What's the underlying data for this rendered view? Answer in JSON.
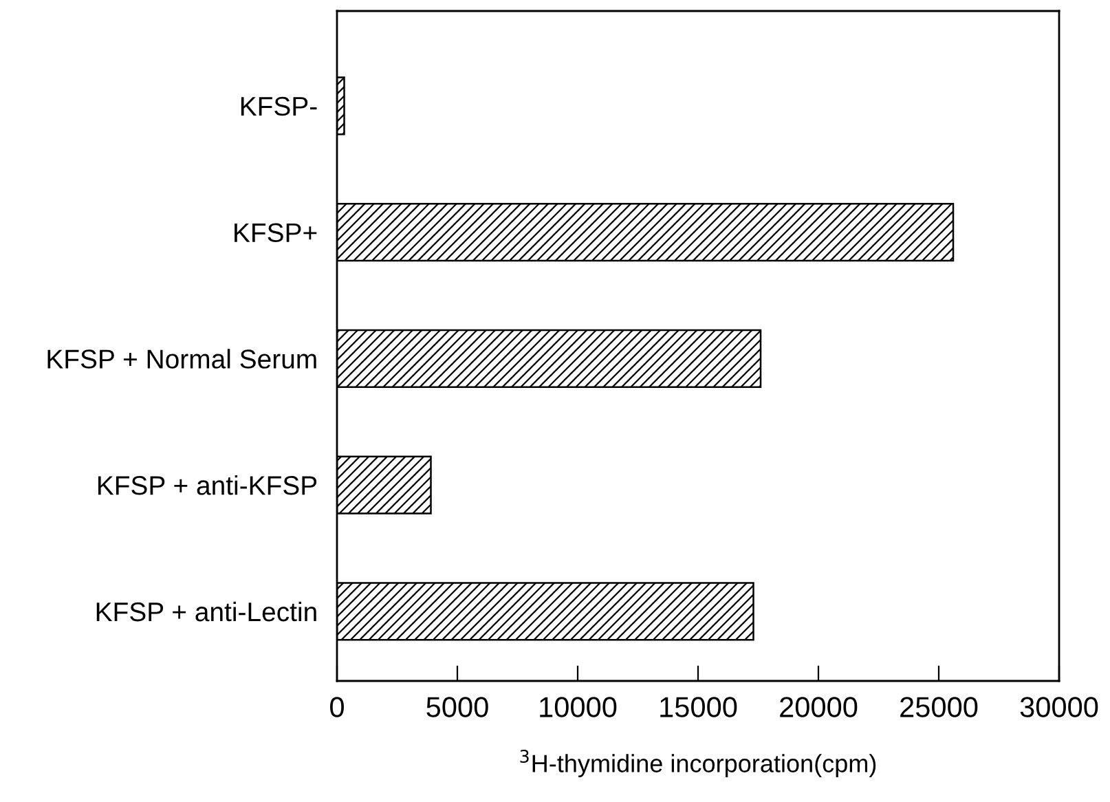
{
  "chart_data": {
    "type": "bar",
    "orientation": "horizontal",
    "categories": [
      "KFSP-",
      "KFSP+",
      "KFSP + Normal Serum",
      "KFSP + anti-KFSP",
      "KFSP + anti-Lectin"
    ],
    "values": [
      300,
      25600,
      17600,
      3900,
      17300
    ],
    "color": "#000000",
    "xlabel": "$^{3}$H-thymidine incorporation(cpm)",
    "xlim": [
      0,
      30000
    ],
    "xticks": [
      0,
      5000,
      10000,
      15000,
      20000,
      25000,
      30000
    ],
    "grid": false,
    "legend": false
  }
}
